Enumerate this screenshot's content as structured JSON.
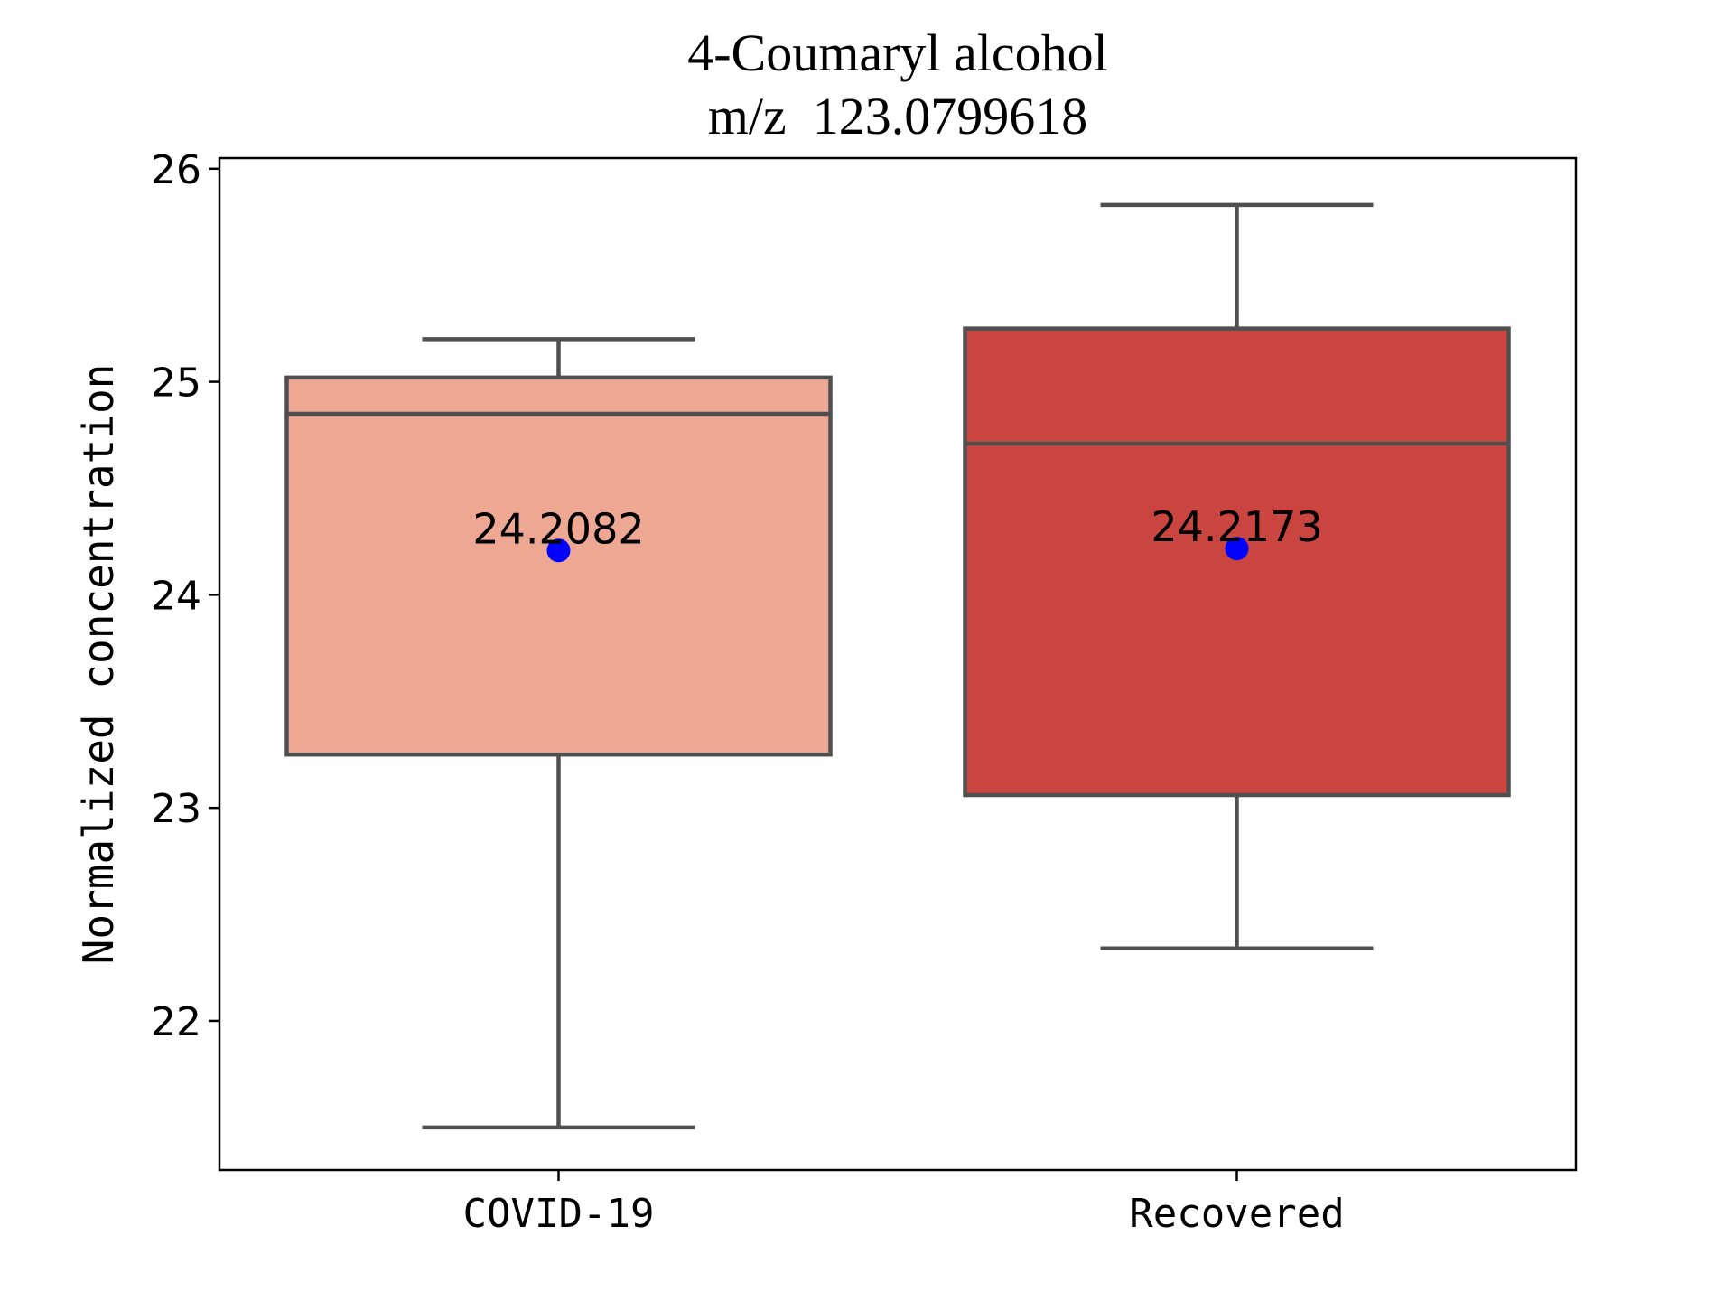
{
  "chart_data": {
    "type": "box",
    "title": "4-Coumaryl alcohol",
    "subtitle": "m/z  123.0799618",
    "xlabel": "",
    "ylabel": "Normalized concentration",
    "ylim": [
      21.3,
      26.05
    ],
    "yticks": [
      22,
      23,
      24,
      25,
      26
    ],
    "grid": false,
    "categories": [
      "COVID-19",
      "Recovered"
    ],
    "boxes": [
      {
        "category": "COVID-19",
        "whisker_low": 21.5,
        "q1": 23.25,
        "median": 24.85,
        "q3": 25.02,
        "whisker_high": 25.2,
        "mean": 24.2082,
        "mean_label": "24.2082",
        "color": "#eda792"
      },
      {
        "category": "Recovered",
        "whisker_low": 22.34,
        "q1": 23.06,
        "median": 24.71,
        "q3": 25.25,
        "whisker_high": 25.83,
        "mean": 24.2173,
        "mean_label": "24.2173",
        "color": "#cb4540"
      }
    ],
    "line_color": "#4f4f4f",
    "mean_marker_color": "#0000ff"
  }
}
